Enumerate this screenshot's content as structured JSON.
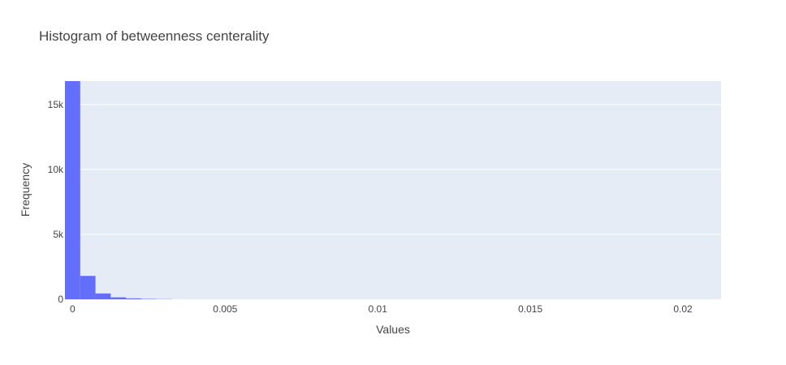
{
  "chart_data": {
    "type": "bar",
    "title": "Histogram of betweenness centerality",
    "xlabel": "Values",
    "ylabel": "Frequency",
    "x_ticks": [
      {
        "value": 0,
        "label": "0"
      },
      {
        "value": 0.005,
        "label": "0.005"
      },
      {
        "value": 0.01,
        "label": "0.01"
      },
      {
        "value": 0.015,
        "label": "0.015"
      },
      {
        "value": 0.02,
        "label": "0.02"
      }
    ],
    "y_ticks": [
      {
        "value": 0,
        "label": "0"
      },
      {
        "value": 5000,
        "label": "5k"
      },
      {
        "value": 10000,
        "label": "10k"
      },
      {
        "value": 15000,
        "label": "15k"
      }
    ],
    "xlim": [
      -0.00025,
      0.02125
    ],
    "ylim": [
      0,
      16800
    ],
    "bin_width": 0.0005,
    "bins": [
      {
        "x0": -0.00025,
        "x1": 0.00025,
        "count": 16800
      },
      {
        "x0": 0.00025,
        "x1": 0.00075,
        "count": 1800
      },
      {
        "x0": 0.00075,
        "x1": 0.00125,
        "count": 450
      },
      {
        "x0": 0.00125,
        "x1": 0.00175,
        "count": 150
      },
      {
        "x0": 0.00175,
        "x1": 0.00225,
        "count": 70
      },
      {
        "x0": 0.00225,
        "x1": 0.00275,
        "count": 30
      },
      {
        "x0": 0.00275,
        "x1": 0.00325,
        "count": 15
      }
    ],
    "grid": true,
    "colors": {
      "bar": "#636efa",
      "plot_background": "#e5ecf6",
      "grid": "#ffffff",
      "text": "#444444"
    }
  }
}
